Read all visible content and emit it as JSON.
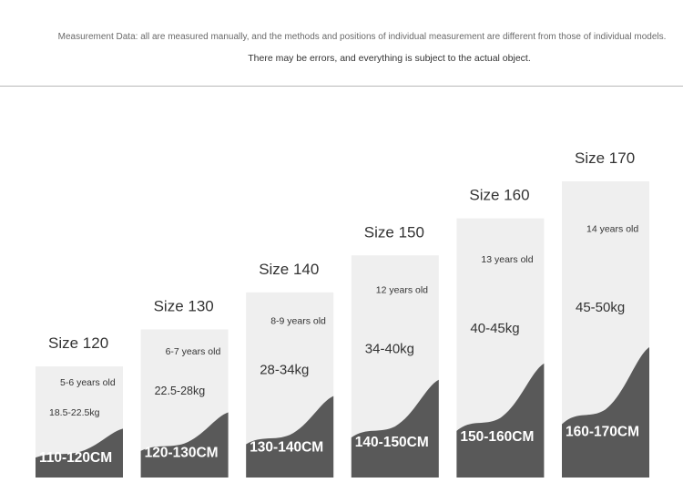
{
  "header": {
    "note_line1": "Measurement Data: all are measured manually, and the methods and positions of individual measurement are different from those of individual models.",
    "note_line2": "There may be errors, and everything is subject to the actual object."
  },
  "chart_data": {
    "type": "bar",
    "categories": [
      "Size 120",
      "Size 130",
      "Size 140",
      "Size 150",
      "Size 160",
      "Size 170"
    ],
    "height_ranges": [
      "110-120CM",
      "120-130CM",
      "130-140CM",
      "140-150CM",
      "150-160CM",
      "160-170CM"
    ],
    "weights": [
      "18.5-22.5kg",
      "22.5-28kg",
      "28-34kg",
      "34-40kg",
      "40-45kg",
      "45-50kg"
    ],
    "ages": [
      "5-6 years old",
      "6-7 years old",
      "8-9 years old",
      "12 years old",
      "13 years old",
      "14 years old"
    ],
    "values": [
      120,
      130,
      140,
      150,
      160,
      170
    ],
    "ylim": [
      90,
      170
    ],
    "colors": {
      "light": "#efefef",
      "dark": "#595959",
      "text": "#333333",
      "label_light": "#ffffff"
    }
  }
}
